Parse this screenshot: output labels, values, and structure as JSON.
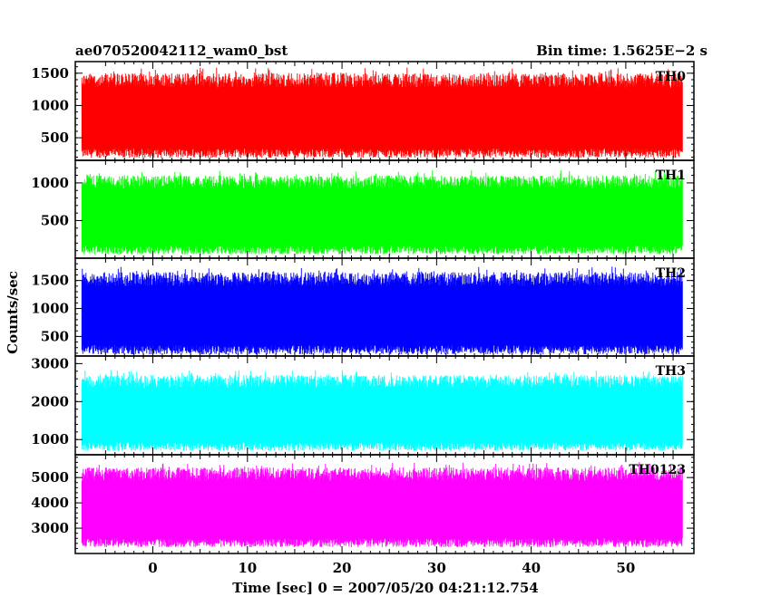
{
  "header": {
    "title": "ae070520042112_wam0_bst",
    "bin_time": "Bin time: 1.5625E−2 s"
  },
  "axes": {
    "xlabel": "Time [sec] 0 = 2007/05/20 04:21:12.754",
    "ylabel": "Counts/sec",
    "xlim": [
      -8.2,
      57.2
    ],
    "x_tick_labels": [
      "0",
      "10",
      "20",
      "30",
      "40",
      "50"
    ],
    "x_tick_values": [
      0,
      10,
      20,
      30,
      40,
      50
    ]
  },
  "chart_data": [
    {
      "type": "line",
      "series": [
        {
          "name": "TH0",
          "color": "#ff0000"
        }
      ],
      "x_range": [
        -7.5,
        56.0
      ],
      "ylim": [
        150,
        1680
      ],
      "y_ticks": [
        500,
        1000,
        1500
      ],
      "approx_baseline_range": [
        250,
        1500
      ],
      "approx_mean": 900
    },
    {
      "type": "line",
      "series": [
        {
          "name": "TH1",
          "color": "#00ff00"
        }
      ],
      "x_range": [
        -7.5,
        56.0
      ],
      "ylim": [
        0,
        1300
      ],
      "y_ticks": [
        500,
        1000
      ],
      "approx_baseline_range": [
        100,
        1100
      ],
      "approx_mean": 600
    },
    {
      "type": "line",
      "series": [
        {
          "name": "TH2",
          "color": "#0000ff"
        }
      ],
      "x_range": [
        -7.5,
        56.0
      ],
      "ylim": [
        150,
        1900
      ],
      "y_ticks": [
        500,
        1000,
        1500
      ],
      "approx_baseline_range": [
        250,
        1650
      ],
      "approx_mean": 950
    },
    {
      "type": "line",
      "series": [
        {
          "name": "TH3",
          "color": "#00ffff"
        }
      ],
      "x_range": [
        -7.5,
        56.0
      ],
      "ylim": [
        600,
        3200
      ],
      "y_ticks": [
        1000,
        2000,
        3000
      ],
      "approx_baseline_range": [
        800,
        2700
      ],
      "approx_mean": 1750
    },
    {
      "type": "line",
      "series": [
        {
          "name": "TH0123",
          "color": "#ff00ff"
        }
      ],
      "x_range": [
        -7.5,
        56.0
      ],
      "ylim": [
        2000,
        5900
      ],
      "y_ticks": [
        3000,
        4000,
        5000
      ],
      "approx_baseline_range": [
        2400,
        5400
      ],
      "approx_mean": 3900
    }
  ]
}
